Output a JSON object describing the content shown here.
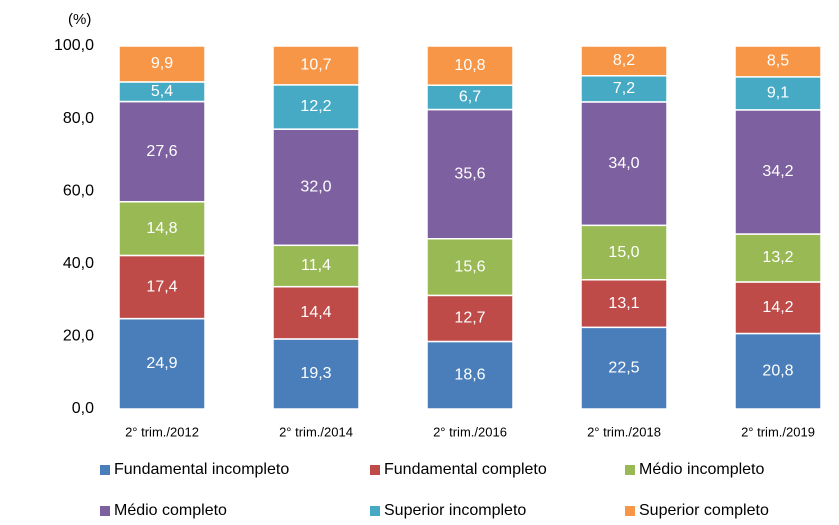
{
  "chart_data": {
    "type": "stacked_bar",
    "ylabel": "(%)",
    "categories": [
      "2° trim./2012",
      "2° trim./2014",
      "2° trim./2016",
      "2° trim./2018",
      "2° trim./2019"
    ],
    "series": [
      {
        "name": "Fundamental incompleto",
        "color": "#4a7ebb",
        "values": [
          24.9,
          19.3,
          18.6,
          22.5,
          20.8
        ],
        "value_labels": [
          "24,9",
          "19,3",
          "18,6",
          "22,5",
          "20,8"
        ]
      },
      {
        "name": "Fundamental completo",
        "color": "#be4b48",
        "values": [
          17.4,
          14.4,
          12.7,
          13.1,
          14.2
        ],
        "value_labels": [
          "17,4",
          "14,4",
          "12,7",
          "13,1",
          "14,2"
        ]
      },
      {
        "name": "Médio incompleto",
        "color": "#98b954",
        "values": [
          14.8,
          11.4,
          15.6,
          15.0,
          13.2
        ],
        "value_labels": [
          "14,8",
          "11,4",
          "15,6",
          "15,0",
          "13,2"
        ]
      },
      {
        "name": "Médio completo",
        "color": "#7d60a0",
        "values": [
          27.6,
          32.0,
          35.6,
          34.0,
          34.2
        ],
        "value_labels": [
          "27,6",
          "32,0",
          "35,6",
          "34,0",
          "34,2"
        ]
      },
      {
        "name": "Superior incompleto",
        "color": "#46aac5",
        "values": [
          5.4,
          12.2,
          6.7,
          7.2,
          9.1
        ],
        "value_labels": [
          "5,4",
          "12,2",
          "6,7",
          "7,2",
          "9,1"
        ]
      },
      {
        "name": "Superior completo",
        "color": "#f79646",
        "values": [
          9.9,
          10.7,
          10.8,
          8.2,
          8.5
        ],
        "value_labels": [
          "9,9",
          "10,7",
          "10,8",
          "8,2",
          "8,5"
        ]
      }
    ],
    "ylim": [
      0,
      100
    ],
    "yticks": [
      {
        "value": 0,
        "label": "0,0"
      },
      {
        "value": 20,
        "label": "20,0"
      },
      {
        "value": 40,
        "label": "40,0"
      },
      {
        "value": 60,
        "label": "60,0"
      },
      {
        "value": 80,
        "label": "80,0"
      },
      {
        "value": 100,
        "label": "100,0"
      }
    ],
    "grid": false,
    "legend": "bottom"
  }
}
